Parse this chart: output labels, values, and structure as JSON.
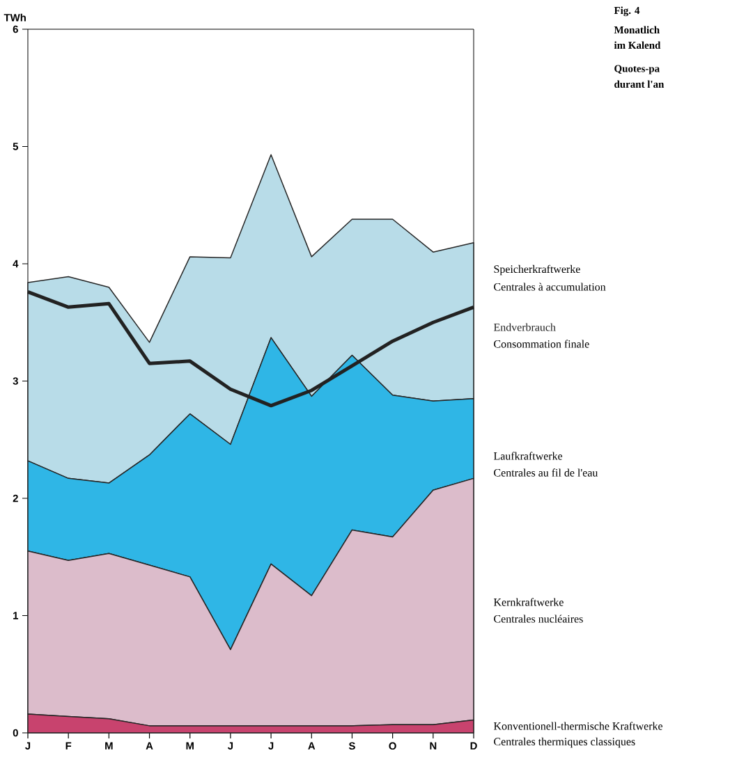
{
  "chart_data": {
    "type": "area",
    "stacked": true,
    "title": "Fig. 4",
    "ylabel": "TWh",
    "categories": [
      "J",
      "F",
      "M",
      "A",
      "M",
      "J",
      "J",
      "A",
      "S",
      "O",
      "N",
      "D"
    ],
    "ylim": [
      0,
      6
    ],
    "yticks": [
      0,
      1,
      2,
      3,
      4,
      5,
      6
    ],
    "series": [
      {
        "name": "Konventionell-thermische Kraftwerke",
        "color": "#c8436e",
        "values": [
          0.16,
          0.14,
          0.12,
          0.06,
          0.06,
          0.06,
          0.06,
          0.06,
          0.06,
          0.07,
          0.07,
          0.11
        ]
      },
      {
        "name": "Kernkraftwerke",
        "color": "#dcbccb",
        "values": [
          1.39,
          1.33,
          1.41,
          1.37,
          1.27,
          0.65,
          1.38,
          1.11,
          1.67,
          1.6,
          2.0,
          2.06
        ]
      },
      {
        "name": "Laufkraftwerke",
        "color": "#2fb6e6",
        "values": [
          0.77,
          0.7,
          0.6,
          0.94,
          1.39,
          1.75,
          1.93,
          1.7,
          1.49,
          1.21,
          0.76,
          0.68
        ]
      },
      {
        "name": "Speicherkraftwerke",
        "color": "#b8dce8",
        "values": [
          1.52,
          1.72,
          1.67,
          0.96,
          1.34,
          1.59,
          1.56,
          1.19,
          1.16,
          1.5,
          1.27,
          1.33
        ]
      },
      {
        "name": "Endverbrauch",
        "type": "line",
        "color": "#222222",
        "values": [
          3.76,
          3.63,
          3.66,
          3.15,
          3.17,
          2.93,
          2.79,
          2.92,
          3.13,
          3.34,
          3.5,
          3.63
        ]
      }
    ],
    "annotations": [
      "Monatlich",
      "im Kalend",
      "Quotes-pa",
      "durant l'an",
      "Centrales thermiques classiques",
      "Centrales nucléaires",
      "Centrales au fil de l'eau",
      "Centrales à accumulation",
      "Consommation finale"
    ]
  }
}
